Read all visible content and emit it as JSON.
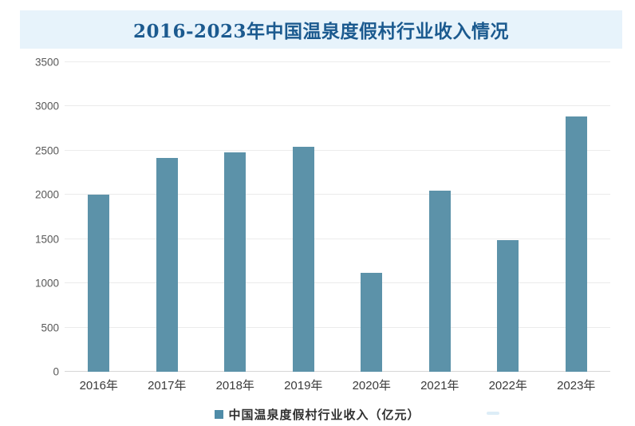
{
  "title": "2016-2023年中国温泉度假村行业收入情况",
  "legend": {
    "label": "中国温泉度假村行业收入（亿元）"
  },
  "chart_data": {
    "type": "bar",
    "title": "2016-2023年中国温泉度假村行业收入情况",
    "categories": [
      "2016年",
      "2017年",
      "2018年",
      "2019年",
      "2020年",
      "2021年",
      "2022年",
      "2023年"
    ],
    "series": [
      {
        "name": "中国温泉度假村行业收入（亿元）",
        "values": [
          2000,
          2415,
          2480,
          2540,
          1120,
          2050,
          1485,
          2885
        ]
      }
    ],
    "xlabel": "",
    "ylabel": "",
    "ylim": [
      0,
      3500
    ],
    "yticks": [
      0,
      500,
      1000,
      1500,
      2000,
      2500,
      3000,
      3500
    ],
    "grid": "horizontal",
    "legend_position": "bottom-center"
  },
  "colors": {
    "bar": "#5C92A9",
    "legend_swatch": "#4F8CA8",
    "title_text": "#1B5A8F",
    "title_banner_bg": "#E7F3FB",
    "gridline": "#EBEBEB",
    "axis_line": "#D6D6D6",
    "y_tick_text": "#595959",
    "x_tick_text": "#3A3A3A",
    "watermark": "#CFE6F3"
  }
}
